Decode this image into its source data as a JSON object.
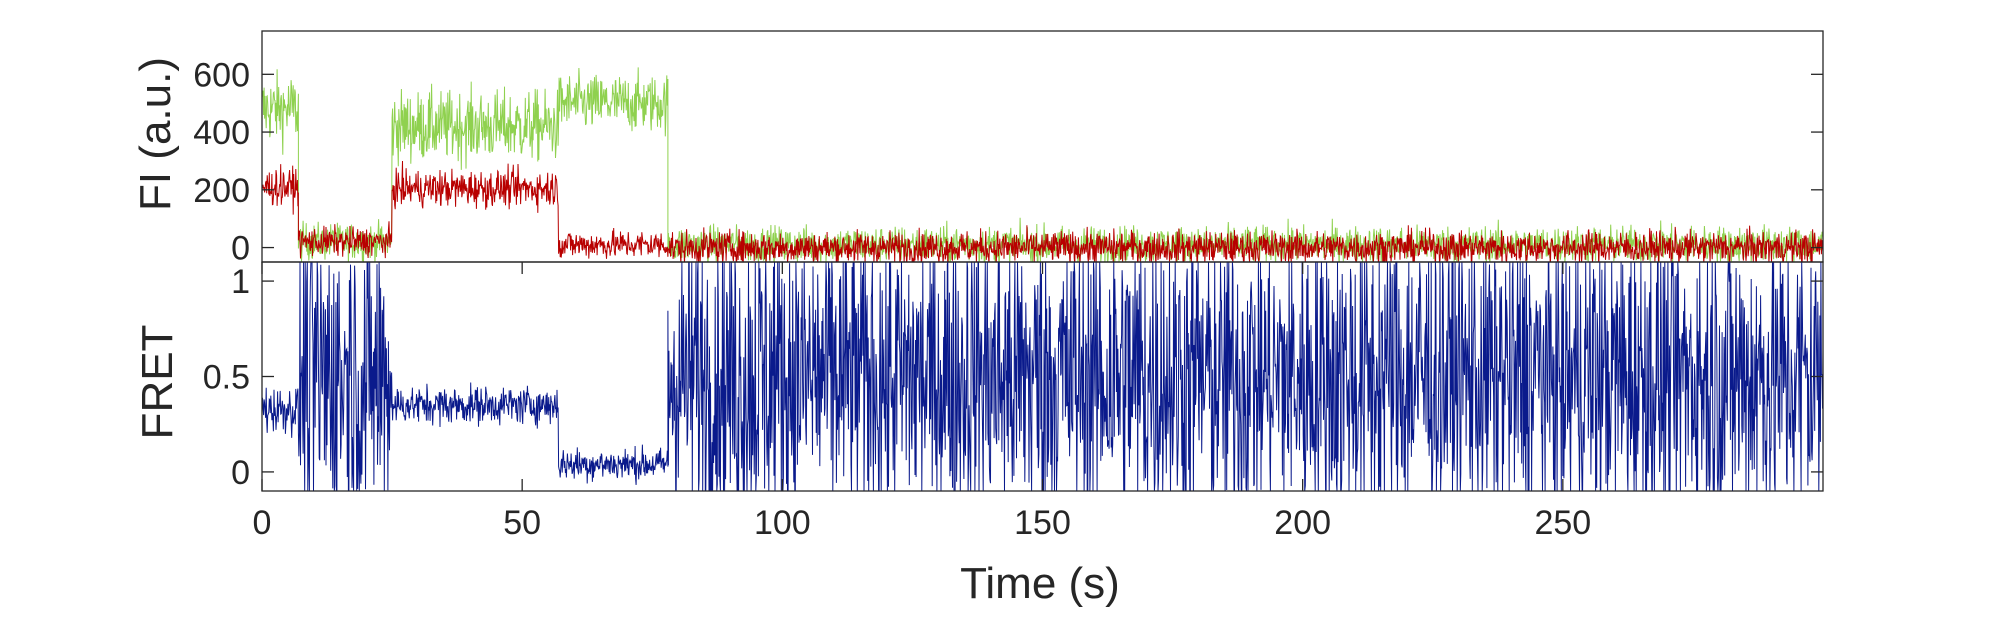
{
  "chart_data": [
    {
      "type": "line",
      "panel": "top",
      "ylabel": "FI (a.u.)",
      "xlabel": "",
      "xlim": [
        0,
        300
      ],
      "ylim": [
        -50,
        750
      ],
      "yticks": [
        0,
        200,
        400,
        600
      ],
      "grid": false,
      "series": [
        {
          "color": "#8fd14f",
          "segments": [
            {
              "x0": 0,
              "x1": 7,
              "mean": 480,
              "noise": 85
            },
            {
              "x0": 7,
              "x1": 25,
              "mean": 20,
              "noise": 45
            },
            {
              "x0": 25,
              "x1": 57,
              "mean": 420,
              "noise": 85
            },
            {
              "x0": 57,
              "x1": 78,
              "mean": 500,
              "noise": 70
            },
            {
              "x0": 78,
              "x1": 300,
              "mean": 10,
              "noise": 45
            }
          ]
        },
        {
          "color": "#b80000",
          "segments": [
            {
              "x0": 0,
              "x1": 7,
              "mean": 210,
              "noise": 45
            },
            {
              "x0": 7,
              "x1": 25,
              "mean": 20,
              "noise": 35
            },
            {
              "x0": 25,
              "x1": 57,
              "mean": 205,
              "noise": 45
            },
            {
              "x0": 57,
              "x1": 78,
              "mean": 10,
              "noise": 35
            },
            {
              "x0": 78,
              "x1": 300,
              "mean": 0,
              "noise": 40
            }
          ]
        }
      ]
    },
    {
      "type": "line",
      "panel": "bottom",
      "ylabel": "FRET",
      "xlabel": "Time (s)",
      "xlim": [
        0,
        300
      ],
      "ylim": [
        -0.1,
        1.1
      ],
      "yticks": [
        0,
        0.5,
        1
      ],
      "xticks": [
        0,
        50,
        100,
        150,
        200,
        250
      ],
      "grid": false,
      "series": [
        {
          "color": "#0a1a8c",
          "segments": [
            {
              "x0": 0,
              "x1": 7,
              "mean": 0.33,
              "noise": 0.09
            },
            {
              "x0": 7,
              "x1": 25,
              "mean": 0.5,
              "noise": 0.6
            },
            {
              "x0": 25,
              "x1": 57,
              "mean": 0.35,
              "noise": 0.07
            },
            {
              "x0": 57,
              "x1": 78,
              "mean": 0.04,
              "noise": 0.06
            },
            {
              "x0": 78,
              "x1": 300,
              "mean": 0.5,
              "noise": 0.6
            }
          ]
        }
      ]
    }
  ]
}
